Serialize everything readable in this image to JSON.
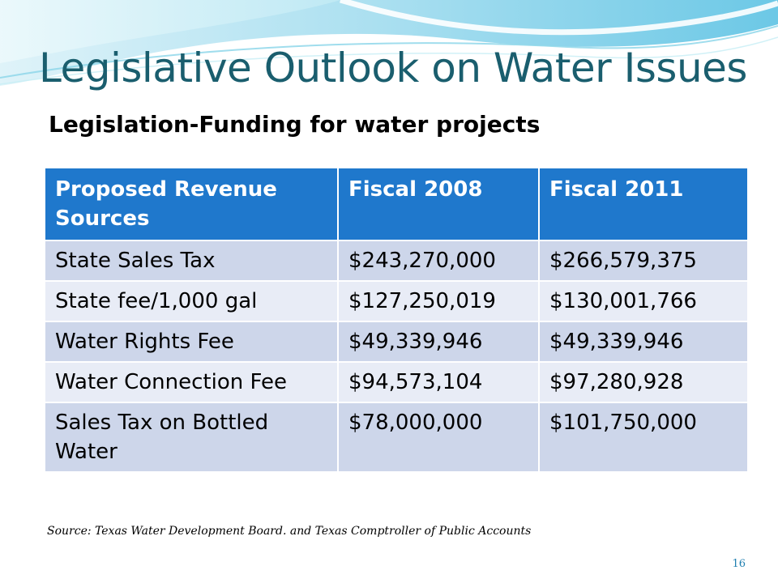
{
  "slide": {
    "title": "Legislative Outlook on Water Issues",
    "subtitle": "Legislation-Funding for water projects",
    "source_note": "Source: Texas Water Development Board. and Texas Comptroller of Public Accounts",
    "page_number": "16"
  },
  "table": {
    "headers": [
      "Proposed Revenue Sources",
      "Fiscal 2008",
      "Fiscal 2011"
    ],
    "rows": [
      [
        "State Sales Tax",
        "$243,270,000",
        "$266,579,375"
      ],
      [
        "State fee/1,000 gal",
        "$127,250,019",
        "$130,001,766"
      ],
      [
        "Water Rights Fee",
        "$49,339,946",
        "$49,339,946"
      ],
      [
        "Water Connection Fee",
        "$94,573,104",
        "$97,280,928"
      ],
      [
        "Sales Tax on Bottled Water",
        "$78,000,000",
        "$101,750,000"
      ]
    ]
  },
  "colors": {
    "title": "#1a5e6e",
    "header_fill": "#1f78cc",
    "row_fill_odd": "#cdd6ea",
    "row_fill_even": "#e8ecf6"
  }
}
